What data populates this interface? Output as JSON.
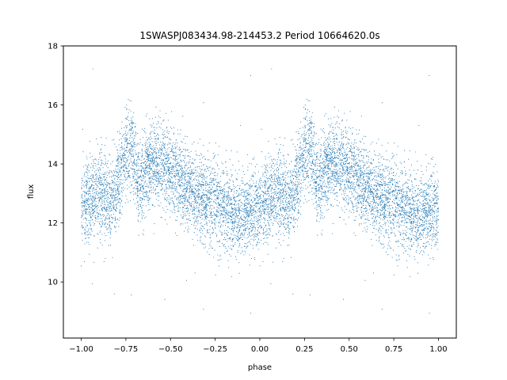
{
  "chart_data": {
    "type": "scatter",
    "title": "1SWASPJ083434.98-214453.2 Period 10664620.0s",
    "xlabel": "phase",
    "ylabel": "flux",
    "xlim": [
      -1.1,
      1.1
    ],
    "ylim": [
      8.1,
      18.0
    ],
    "x_ticks": [
      -1.0,
      -0.75,
      -0.5,
      -0.25,
      0.0,
      0.25,
      0.5,
      0.75,
      1.0
    ],
    "x_tick_labels": [
      "−1.00",
      "−0.75",
      "−0.50",
      "−0.25",
      "0.00",
      "0.25",
      "0.50",
      "0.75",
      "1.00"
    ],
    "y_ticks": [
      10,
      12,
      14,
      16,
      18
    ],
    "y_tick_labels": [
      "10",
      "12",
      "14",
      "16",
      "18"
    ],
    "grid": false,
    "legend": "none",
    "point_color": "#1f77b4",
    "series": [
      {
        "phase_profile": {
          "x": [
            0.0,
            0.04,
            0.1,
            0.16,
            0.2,
            0.24,
            0.28,
            0.3,
            0.33,
            0.36,
            0.4,
            0.46,
            0.52,
            0.58,
            0.64,
            0.7,
            0.76,
            0.8,
            0.86,
            0.92,
            0.96,
            1.0
          ],
          "y": [
            12.5,
            12.8,
            13.1,
            12.7,
            13.2,
            14.2,
            14.7,
            14.0,
            13.0,
            13.9,
            14.1,
            14.0,
            13.6,
            13.3,
            13.0,
            12.8,
            12.7,
            12.5,
            12.3,
            12.3,
            12.5,
            12.5
          ]
        },
        "scatter_sigma": 0.7,
        "n_points": 9000,
        "outlier_range": [
          8.5,
          17.5
        ]
      }
    ]
  }
}
